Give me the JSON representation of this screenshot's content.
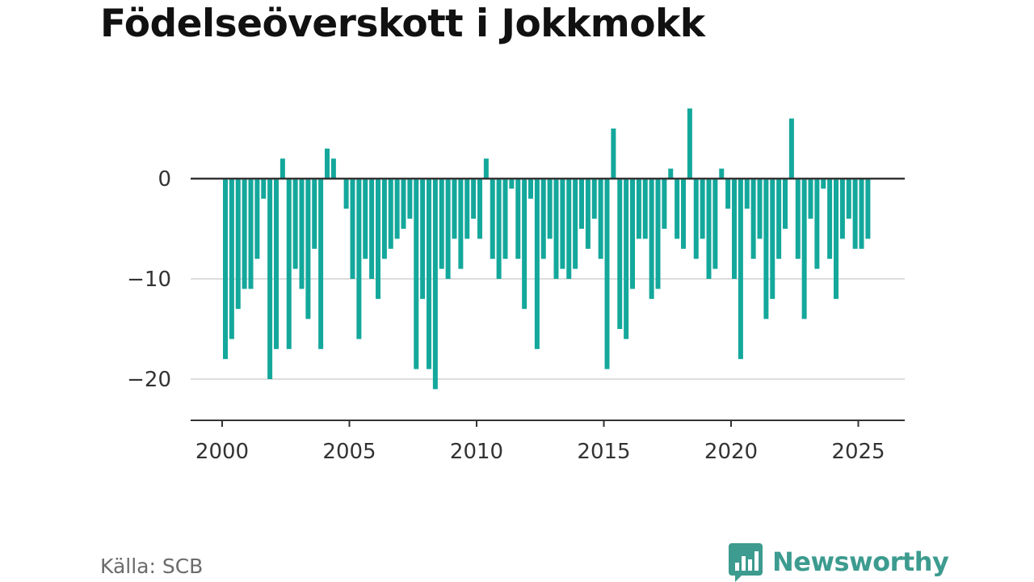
{
  "title": "Födelseöverskott i Jokkmokk",
  "source": "Källa: SCB",
  "brand": {
    "name": "Newsworthy",
    "icon": "newsworthy-logo-icon",
    "color": "#3d9b8f"
  },
  "colors": {
    "bar": "#14a89c",
    "zero_line": "#333333",
    "grid": "#dddddd",
    "axis": "#333333"
  },
  "chart_data": {
    "type": "bar",
    "title": "Födelseöverskott i Jokkmokk",
    "xlabel": "",
    "ylabel": "",
    "frequency": "quarterly",
    "x_ticks": [
      "2000",
      "2005",
      "2010",
      "2015",
      "2020",
      "2025"
    ],
    "y_ticks": [
      0,
      -10,
      -20
    ],
    "y_tick_labels": [
      "0",
      "−10",
      "−20"
    ],
    "ylim": [
      -24,
      9
    ],
    "grid": "horizontal",
    "x": [
      "2000Q1",
      "2000Q2",
      "2000Q3",
      "2000Q4",
      "2001Q1",
      "2001Q2",
      "2001Q3",
      "2001Q4",
      "2002Q1",
      "2002Q2",
      "2002Q3",
      "2002Q4",
      "2003Q1",
      "2003Q2",
      "2003Q3",
      "2003Q4",
      "2004Q1",
      "2004Q2",
      "2004Q3",
      "2004Q4",
      "2005Q1",
      "2005Q2",
      "2005Q3",
      "2005Q4",
      "2006Q1",
      "2006Q2",
      "2006Q3",
      "2006Q4",
      "2007Q1",
      "2007Q2",
      "2007Q3",
      "2007Q4",
      "2008Q1",
      "2008Q2",
      "2008Q3",
      "2008Q4",
      "2009Q1",
      "2009Q2",
      "2009Q3",
      "2009Q4",
      "2010Q1",
      "2010Q2",
      "2010Q3",
      "2010Q4",
      "2011Q1",
      "2011Q2",
      "2011Q3",
      "2011Q4",
      "2012Q1",
      "2012Q2",
      "2012Q3",
      "2012Q4",
      "2013Q1",
      "2013Q2",
      "2013Q3",
      "2013Q4",
      "2014Q1",
      "2014Q2",
      "2014Q3",
      "2014Q4",
      "2015Q1",
      "2015Q2",
      "2015Q3",
      "2015Q4",
      "2016Q1",
      "2016Q2",
      "2016Q3",
      "2016Q4",
      "2017Q1",
      "2017Q2",
      "2017Q3",
      "2017Q4",
      "2018Q1",
      "2018Q2",
      "2018Q3",
      "2018Q4",
      "2019Q1",
      "2019Q2",
      "2019Q3",
      "2019Q4",
      "2020Q1",
      "2020Q2",
      "2020Q3",
      "2020Q4",
      "2021Q1",
      "2021Q2",
      "2021Q3",
      "2021Q4",
      "2022Q1",
      "2022Q2",
      "2022Q3",
      "2022Q4",
      "2023Q1",
      "2023Q2",
      "2023Q3",
      "2023Q4",
      "2024Q1",
      "2024Q2",
      "2024Q3",
      "2024Q4",
      "2025Q1",
      "2025Q2"
    ],
    "values": [
      -18,
      -16,
      -13,
      -11,
      -11,
      -8,
      -2,
      -20,
      -17,
      2,
      -17,
      -9,
      -11,
      -14,
      -7,
      -17,
      3,
      2,
      0,
      -3,
      -10,
      -16,
      -8,
      -10,
      -12,
      -8,
      -7,
      -6,
      -5,
      -4,
      -19,
      -12,
      -19,
      -21,
      -9,
      -10,
      -6,
      -9,
      -6,
      -4,
      -6,
      2,
      -8,
      -10,
      -8,
      -1,
      -8,
      -13,
      -2,
      -17,
      -8,
      -6,
      -10,
      -9,
      -10,
      -9,
      -5,
      -7,
      -4,
      -8,
      -19,
      5,
      -15,
      -16,
      -11,
      -6,
      -6,
      -12,
      -11,
      -5,
      1,
      -6,
      -7,
      7,
      -8,
      -6,
      -10,
      -9,
      1,
      -3,
      -10,
      -18,
      -3,
      -8,
      -6,
      -14,
      -12,
      -8,
      -5,
      6,
      -8,
      -14,
      -4,
      -9,
      -1,
      -8,
      -12,
      -6,
      -4,
      -7,
      -7,
      -6
    ]
  }
}
